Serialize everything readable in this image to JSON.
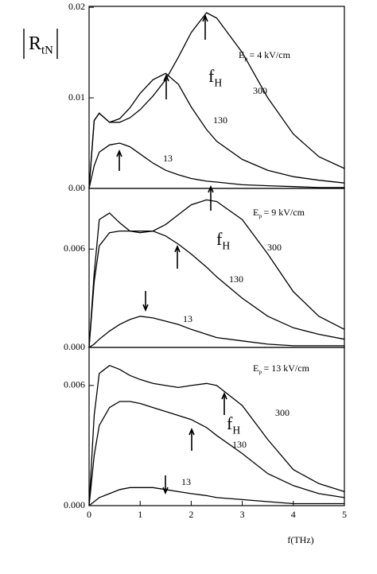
{
  "chart_data": [
    {
      "type": "line",
      "ylabel": "R",
      "ylabel_sub": "tN",
      "field": {
        "symbol": "E",
        "sub": "p",
        "text": "= 4 kV/cm"
      },
      "fh": {
        "symbol": "f",
        "sub": "H"
      },
      "xlim": [
        0,
        5
      ],
      "ylim": [
        0,
        0.0201
      ],
      "yticks": [
        {
          "value": 0,
          "label": "0.00"
        },
        {
          "value": 0.01,
          "label": "0.01"
        },
        {
          "value": 0.02,
          "label": "0.02"
        }
      ],
      "x": [
        0,
        0.1,
        0.2,
        0.4,
        0.6,
        0.8,
        1,
        1.25,
        1.5,
        1.75,
        2,
        2.3,
        2.5,
        3,
        3.5,
        4,
        4.5,
        5
      ],
      "series": [
        {
          "name": "300",
          "color": "#000000",
          "values": [
            0,
            0.0075,
            0.0083,
            0.0073,
            0.0073,
            0.0078,
            0.0087,
            0.0102,
            0.012,
            0.0145,
            0.0172,
            0.0194,
            0.0188,
            0.015,
            0.01,
            0.006,
            0.0035,
            0.0022
          ]
        },
        {
          "name": "130",
          "color": "#000000",
          "values": [
            0,
            0.0075,
            0.0083,
            0.0073,
            0.0077,
            0.0089,
            0.0105,
            0.012,
            0.0127,
            0.0115,
            0.009,
            0.0065,
            0.0052,
            0.0032,
            0.002,
            0.0013,
            0.0009,
            0.0006
          ]
        },
        {
          "name": "13",
          "color": "#000000",
          "values": [
            0,
            0.0025,
            0.004,
            0.0048,
            0.005,
            0.0046,
            0.0038,
            0.0028,
            0.002,
            0.0015,
            0.0011,
            0.0008,
            0.0007,
            0.0004,
            0.0003,
            0.0002,
            0.0001,
            0.0001
          ]
        }
      ]
    },
    {
      "type": "line",
      "field": {
        "symbol": "E",
        "sub": "p",
        "text": "= 9 kV/cm"
      },
      "fh": {
        "symbol": "f",
        "sub": "H"
      },
      "xlim": [
        0,
        5
      ],
      "ylim": [
        0,
        0.0097
      ],
      "yticks": [
        {
          "value": 0,
          "label": "0.000"
        },
        {
          "value": 0.006,
          "label": "0.006"
        }
      ],
      "x": [
        0,
        0.1,
        0.2,
        0.4,
        0.6,
        0.8,
        1,
        1.25,
        1.5,
        1.75,
        2,
        2.3,
        2.5,
        3,
        3.5,
        4,
        4.5,
        5
      ],
      "series": [
        {
          "name": "300",
          "color": "#000000",
          "values": [
            0,
            0.0045,
            0.0078,
            0.0082,
            0.0076,
            0.0071,
            0.007,
            0.0071,
            0.0075,
            0.0081,
            0.0087,
            0.009,
            0.0089,
            0.0078,
            0.0057,
            0.0034,
            0.0019,
            0.0011
          ]
        },
        {
          "name": "130",
          "color": "#000000",
          "values": [
            0,
            0.004,
            0.0062,
            0.007,
            0.0071,
            0.0071,
            0.0071,
            0.0071,
            0.0068,
            0.0063,
            0.0057,
            0.0049,
            0.0043,
            0.003,
            0.0019,
            0.0012,
            0.0008,
            0.0005
          ]
        },
        {
          "name": "13",
          "color": "#000000",
          "values": [
            0,
            0.0002,
            0.0005,
            0.001,
            0.0014,
            0.0017,
            0.0019,
            0.0018,
            0.0016,
            0.0014,
            0.0011,
            0.0008,
            0.0006,
            0.0004,
            0.0002,
            0.0001,
            0.0001,
            0.0001
          ]
        }
      ]
    },
    {
      "type": "line",
      "field": {
        "symbol": "E",
        "sub": "p",
        "text": "= 13 kV/cm"
      },
      "fh": {
        "symbol": "f",
        "sub": "H"
      },
      "xlabel": "f(THz)",
      "xlim": [
        0,
        5
      ],
      "ylim": [
        0,
        0.0079
      ],
      "xticks": [
        0,
        1,
        2,
        3,
        4,
        5
      ],
      "yticks": [
        {
          "value": 0,
          "label": "0.000"
        },
        {
          "value": 0.006,
          "label": "0.006"
        }
      ],
      "x": [
        0,
        0.1,
        0.2,
        0.4,
        0.6,
        0.8,
        1,
        1.25,
        1.5,
        1.75,
        2,
        2.3,
        2.5,
        3,
        3.5,
        4,
        4.5,
        5
      ],
      "series": [
        {
          "name": "300",
          "color": "#000000",
          "values": [
            0,
            0.0045,
            0.0066,
            0.007,
            0.0068,
            0.0065,
            0.0063,
            0.0061,
            0.006,
            0.0059,
            0.006,
            0.0061,
            0.006,
            0.005,
            0.0033,
            0.0018,
            0.0011,
            0.0007
          ]
        },
        {
          "name": "130",
          "color": "#000000",
          "values": [
            0,
            0.0025,
            0.004,
            0.0049,
            0.0052,
            0.0052,
            0.0051,
            0.0049,
            0.0047,
            0.0045,
            0.0043,
            0.0039,
            0.0035,
            0.0026,
            0.0016,
            0.001,
            0.0006,
            0.0004
          ]
        },
        {
          "name": "13",
          "color": "#000000",
          "values": [
            0,
            0.0002,
            0.0004,
            0.0006,
            0.0008,
            0.0009,
            0.0009,
            0.0009,
            0.0008,
            0.0007,
            0.0006,
            0.0005,
            0.0004,
            0.0003,
            0.0002,
            0.0001,
            0.0001,
            0.0001
          ]
        }
      ]
    }
  ]
}
